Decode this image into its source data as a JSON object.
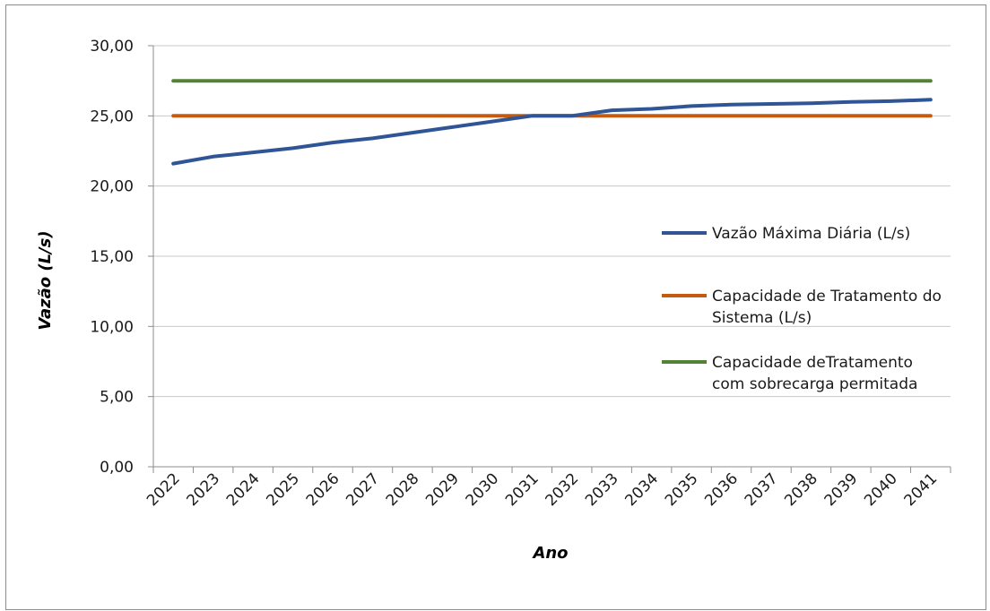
{
  "chart_data": {
    "type": "line",
    "title": "",
    "xlabel": "Ano",
    "ylabel": "Vazão (L/s)",
    "categories": [
      "2022",
      "2023",
      "2024",
      "2025",
      "2026",
      "2027",
      "2028",
      "2029",
      "2030",
      "2031",
      "2032",
      "2033",
      "2034",
      "2035",
      "2036",
      "2037",
      "2038",
      "2039",
      "2040",
      "2041"
    ],
    "yticks": [
      "0,00",
      "5,00",
      "10,00",
      "15,00",
      "20,00",
      "25,00",
      "30,00"
    ],
    "ylim": [
      0,
      30
    ],
    "grid": "horizontal",
    "legend_position": "right",
    "series": [
      {
        "name": "Vazão Máxima Diária (L/s)",
        "legend_lines": [
          "Vazão Máxima Diária (L/s)"
        ],
        "color": "#2f5597",
        "values": [
          21.6,
          22.1,
          22.4,
          22.7,
          23.1,
          23.4,
          23.8,
          24.2,
          24.6,
          25.0,
          25.0,
          25.4,
          25.5,
          25.7,
          25.8,
          25.85,
          25.9,
          26.0,
          26.05,
          26.15
        ]
      },
      {
        "name": "Capacidade de Tratamento do Sistema (L/s)",
        "legend_lines": [
          "Capacidade de Tratamento do",
          "Sistema (L/s)"
        ],
        "color": "#c55a11",
        "values": [
          25.0,
          25.0,
          25.0,
          25.0,
          25.0,
          25.0,
          25.0,
          25.0,
          25.0,
          25.0,
          25.0,
          25.0,
          25.0,
          25.0,
          25.0,
          25.0,
          25.0,
          25.0,
          25.0,
          25.0
        ]
      },
      {
        "name": "Capacidade deTratamento com sobrecarga permitada",
        "legend_lines": [
          "Capacidade deTratamento",
          "com sobrecarga permitada"
        ],
        "color": "#548235",
        "values": [
          27.5,
          27.5,
          27.5,
          27.5,
          27.5,
          27.5,
          27.5,
          27.5,
          27.5,
          27.5,
          27.5,
          27.5,
          27.5,
          27.5,
          27.5,
          27.5,
          27.5,
          27.5,
          27.5,
          27.5
        ]
      }
    ]
  }
}
